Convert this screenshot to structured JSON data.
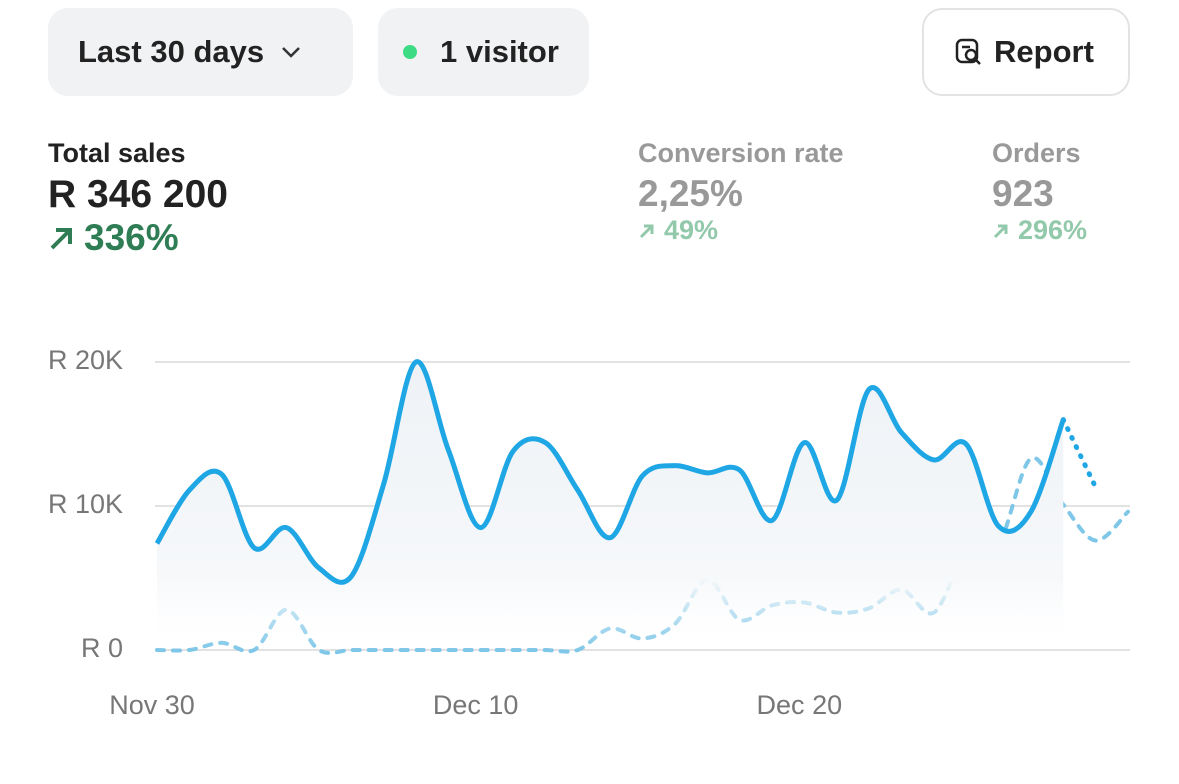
{
  "header": {
    "period": "Last 30 days",
    "visitors": "1 visitor",
    "report": "Report"
  },
  "metrics": [
    {
      "label": "Total sales",
      "value": "R 346 200",
      "change": "336%"
    },
    {
      "label": "Conversion rate",
      "value": "2,25%",
      "change": "49%"
    },
    {
      "label": "Orders",
      "value": "923",
      "change": "296%"
    }
  ],
  "chart_data": {
    "type": "line",
    "x": [
      "Nov 30",
      "Dec 1",
      "Dec 2",
      "Dec 3",
      "Dec 4",
      "Dec 5",
      "Dec 6",
      "Dec 7",
      "Dec 8",
      "Dec 9",
      "Dec 10",
      "Dec 11",
      "Dec 12",
      "Dec 13",
      "Dec 14",
      "Dec 15",
      "Dec 16",
      "Dec 17",
      "Dec 18",
      "Dec 19",
      "Dec 20",
      "Dec 21",
      "Dec 22",
      "Dec 23",
      "Dec 24",
      "Dec 25",
      "Dec 26",
      "Dec 27",
      "Dec 28",
      "Dec 29",
      "Dec 30"
    ],
    "series": [
      {
        "color": "#1fa6e4",
        "values": [
          7400,
          11100,
          12200,
          7100,
          8500,
          5700,
          5100,
          11500,
          20000,
          13900,
          8500,
          13800,
          14400,
          11100,
          7800,
          12100,
          12800,
          12300,
          12500,
          9000,
          14400,
          10400,
          18100,
          15100,
          13200,
          14300,
          8600,
          9600,
          16000,
          11300,
          null
        ]
      },
      {
        "color": "#7fc7e8",
        "values": [
          0,
          0,
          500,
          0,
          2800,
          0,
          0,
          0,
          0,
          0,
          0,
          0,
          0,
          0,
          1500,
          800,
          1800,
          4900,
          2100,
          3100,
          3300,
          2600,
          2900,
          4200,
          2600,
          6800,
          7300,
          13300,
          10100,
          7600,
          9600
        ]
      }
    ],
    "ylim": [
      0,
      20000
    ],
    "yticks": [
      {
        "value": 0,
        "label": "R 0"
      },
      {
        "value": 10000,
        "label": "R 10K"
      },
      {
        "value": 20000,
        "label": "R 20K"
      }
    ],
    "xticks": [
      "Nov 30",
      "Dec 10",
      "Dec 20"
    ],
    "grid": true
  }
}
